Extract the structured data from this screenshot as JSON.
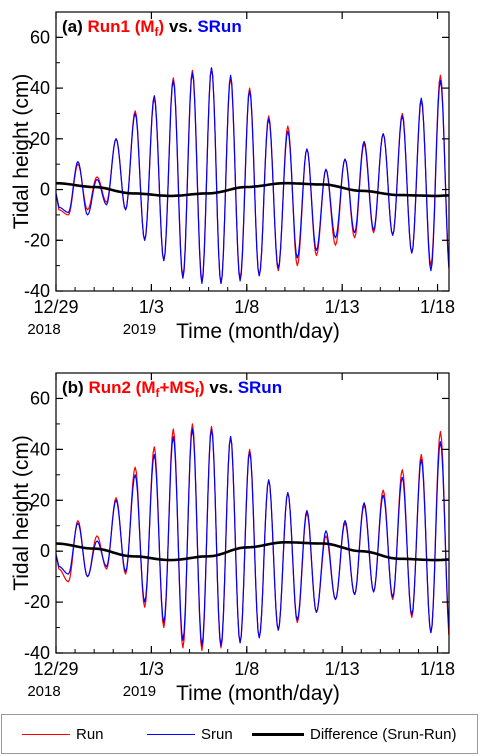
{
  "chart_data": [
    {
      "type": "line",
      "panel_label": "(a)",
      "title_parts": [
        {
          "text": "Run1 (M",
          "color": "#ff0000"
        },
        {
          "text": "f",
          "color": "#ff0000",
          "sub": true
        },
        {
          "text": ")",
          "color": "#ff0000"
        },
        {
          "text": " vs. ",
          "color": "#000000"
        },
        {
          "text": "SRun",
          "color": "#0000ff"
        }
      ],
      "ylabel": "Tidal height (cm)",
      "xlabel": "Time (month/day)",
      "xlim": [
        0,
        20.6
      ],
      "ylim": [
        -40,
        70
      ],
      "yticks": [
        -40,
        -20,
        0,
        20,
        40,
        60
      ],
      "xticks": [
        {
          "x": 0,
          "label": "12/29",
          "year": "2018"
        },
        {
          "x": 5,
          "label": "1/3",
          "year": "2019"
        },
        {
          "x": 10,
          "label": "1/8"
        },
        {
          "x": 15,
          "label": "1/13"
        },
        {
          "x": 20,
          "label": "1/18"
        }
      ],
      "series": [
        {
          "name": "Run",
          "color": "#ff0000",
          "highs": [
            -8,
            10,
            5,
            20,
            31,
            36,
            44,
            47,
            48,
            44,
            40,
            29,
            25,
            16,
            8,
            12,
            18,
            22,
            30,
            35,
            45
          ],
          "lows": [
            -10,
            -8,
            -5,
            -8,
            -20,
            -28,
            -34,
            -36,
            -37,
            -35,
            -34,
            -32,
            -30,
            -26,
            -22,
            -19,
            -17,
            -18,
            -25,
            -30,
            -34
          ]
        },
        {
          "name": "Srun",
          "color": "#0000ff",
          "highs": [
            -7,
            11,
            4,
            20,
            30,
            37,
            43,
            46,
            48,
            45,
            39,
            28,
            23,
            16,
            8,
            12,
            19,
            22,
            29,
            36,
            43
          ],
          "lows": [
            -9,
            -10,
            -6,
            -8,
            -20,
            -28,
            -35,
            -37,
            -37,
            -36,
            -34,
            -31,
            -27,
            -24,
            -19,
            -17,
            -16,
            -18,
            -25,
            -32,
            -33
          ]
        },
        {
          "name": "Difference (Srun-Run)",
          "color": "#000000",
          "x": [
            0,
            2,
            4,
            6,
            8,
            10,
            12,
            14,
            16,
            18,
            20,
            20.6
          ],
          "y": [
            2.5,
            1,
            -1.5,
            -2.5,
            -1.5,
            1,
            2.5,
            2,
            -0.5,
            -2.2,
            -2.5,
            -2.3
          ]
        }
      ]
    },
    {
      "type": "line",
      "panel_label": "(b)",
      "title_parts": [
        {
          "text": "Run2 (M",
          "color": "#ff0000"
        },
        {
          "text": "f",
          "color": "#ff0000",
          "sub": true
        },
        {
          "text": "+MS",
          "color": "#ff0000"
        },
        {
          "text": "f",
          "color": "#ff0000",
          "sub": true
        },
        {
          "text": ")",
          "color": "#ff0000"
        },
        {
          "text": " vs. ",
          "color": "#000000"
        },
        {
          "text": "SRun",
          "color": "#0000ff"
        }
      ],
      "ylabel": "Tidal height (cm)",
      "xlabel": "Time (month/day)",
      "xlim": [
        0,
        20.6
      ],
      "ylim": [
        -40,
        70
      ],
      "yticks": [
        -40,
        -20,
        0,
        20,
        40,
        60
      ],
      "xticks": [
        {
          "x": 0,
          "label": "12/29",
          "year": "2018"
        },
        {
          "x": 5,
          "label": "1/3",
          "year": "2019"
        },
        {
          "x": 10,
          "label": "1/8"
        },
        {
          "x": 15,
          "label": "1/13"
        },
        {
          "x": 20,
          "label": "1/18"
        }
      ],
      "series": [
        {
          "name": "Run",
          "color": "#ff0000",
          "highs": [
            -7,
            12,
            6,
            21,
            33,
            41,
            48,
            50,
            49,
            45,
            40,
            28,
            23,
            15,
            6,
            11,
            18,
            24,
            32,
            38,
            47
          ],
          "lows": [
            -12,
            -10,
            -7,
            -9,
            -22,
            -30,
            -38,
            -39,
            -38,
            -36,
            -34,
            -31,
            -28,
            -24,
            -19,
            -17,
            -16,
            -19,
            -26,
            -32,
            -36
          ]
        },
        {
          "name": "Srun",
          "color": "#0000ff",
          "highs": [
            -6,
            11,
            4,
            20,
            30,
            38,
            45,
            48,
            48,
            45,
            39,
            28,
            23,
            16,
            8,
            12,
            19,
            22,
            29,
            36,
            43
          ],
          "lows": [
            -9,
            -10,
            -6,
            -8,
            -20,
            -28,
            -35,
            -37,
            -37,
            -36,
            -34,
            -31,
            -27,
            -24,
            -19,
            -17,
            -16,
            -18,
            -25,
            -32,
            -33
          ]
        },
        {
          "name": "Difference (Srun-Run)",
          "color": "#000000",
          "x": [
            0,
            2,
            4,
            6,
            8,
            10,
            12,
            14,
            16,
            18,
            20,
            20.6
          ],
          "y": [
            3,
            1,
            -2,
            -3.5,
            -2,
            1.5,
            3.5,
            3,
            0,
            -3,
            -3.5,
            -3.3
          ]
        }
      ]
    }
  ],
  "legend": [
    {
      "label": "Run",
      "color": "#ff0000"
    },
    {
      "label": "Srun",
      "color": "#0000ff"
    },
    {
      "label": "Difference (Srun-Run)",
      "color": "#000000"
    }
  ]
}
